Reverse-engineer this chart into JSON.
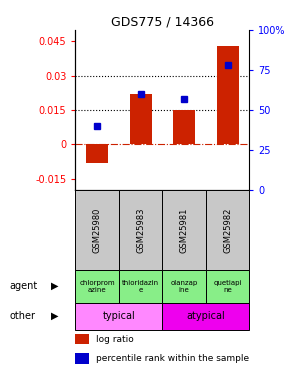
{
  "title": "GDS775 / 14366",
  "samples": [
    "GSM25980",
    "GSM25983",
    "GSM25981",
    "GSM25982"
  ],
  "log_ratio": [
    -0.008,
    0.022,
    0.015,
    0.043
  ],
  "percentile_rank": [
    40,
    60,
    57,
    78
  ],
  "ylim_left": [
    -0.02,
    0.05
  ],
  "ylim_right": [
    0,
    100
  ],
  "yticks_left": [
    -0.015,
    0,
    0.015,
    0.03,
    0.045
  ],
  "yticks_right": [
    0,
    25,
    50,
    75,
    100
  ],
  "bar_color": "#cc2200",
  "dot_color": "#0000cc",
  "agents": [
    "chlorprom\nazine",
    "thioridazin\ne",
    "olanzap\nine",
    "quetiapi\nne"
  ],
  "agent_color": "#88ee88",
  "other_groups": [
    {
      "label": "typical",
      "span": [
        0,
        2
      ],
      "color": "#ff88ff"
    },
    {
      "label": "atypical",
      "span": [
        2,
        4
      ],
      "color": "#ee00ee"
    }
  ],
  "hline_color": "#cc2200",
  "dotted_lines": [
    0.015,
    0.03
  ],
  "legend_labels": [
    "log ratio",
    "percentile rank within the sample"
  ],
  "legend_colors": [
    "#cc2200",
    "#0000cc"
  ],
  "background_color": "#ffffff",
  "gray_color": "#c8c8c8"
}
